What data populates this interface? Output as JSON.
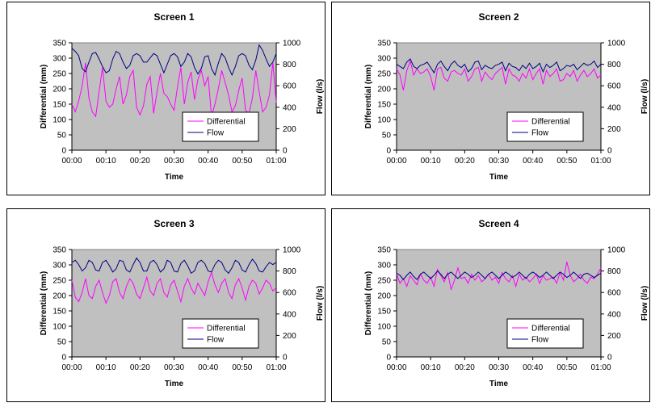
{
  "chart_data": [
    {
      "type": "line",
      "title": "Screen 1",
      "xlabel": "Time",
      "ylabel": "Differential (mm)",
      "y2label": "Flow (l/s)",
      "xticks": [
        "00:00",
        "00:10",
        "00:20",
        "00:30",
        "00:40",
        "00:50",
        "01:00"
      ],
      "ylim": [
        0,
        350
      ],
      "yticks": [
        0,
        50,
        100,
        150,
        200,
        250,
        300,
        350
      ],
      "y2lim": [
        0,
        1000
      ],
      "y2ticks": [
        0,
        200,
        400,
        600,
        800,
        1000
      ],
      "legend_placement": "bottom-right",
      "series": [
        {
          "name": "Differential",
          "axis": "left",
          "color": "#ff00ff",
          "values": [
            150,
            125,
            160,
            210,
            285,
            170,
            125,
            110,
            190,
            270,
            160,
            140,
            150,
            200,
            240,
            150,
            180,
            240,
            260,
            140,
            115,
            145,
            215,
            240,
            120,
            190,
            250,
            185,
            175,
            150,
            130,
            205,
            270,
            150,
            220,
            255,
            165,
            230,
            260,
            210,
            240,
            110,
            150,
            200,
            260,
            220,
            180,
            125,
            145,
            195,
            235,
            130,
            120,
            170,
            260,
            190,
            125,
            140,
            180,
            285,
            155
          ]
        },
        {
          "name": "Flow",
          "axis": "right",
          "color": "#000080",
          "values": [
            950,
            920,
            880,
            760,
            730,
            820,
            900,
            910,
            850,
            780,
            720,
            740,
            850,
            920,
            900,
            820,
            760,
            790,
            880,
            900,
            880,
            820,
            820,
            860,
            900,
            880,
            800,
            720,
            800,
            880,
            900,
            870,
            780,
            820,
            900,
            870,
            770,
            710,
            760,
            870,
            880,
            760,
            700,
            810,
            900,
            860,
            770,
            700,
            780,
            880,
            900,
            880,
            790,
            750,
            840,
            980,
            930,
            850,
            780,
            820,
            900
          ]
        }
      ]
    },
    {
      "type": "line",
      "title": "Screen 2",
      "xlabel": "Time",
      "ylabel": "Differential (mm)",
      "y2label": "Flow (l/s)",
      "xticks": [
        "00:00",
        "00:10",
        "00:20",
        "00:30",
        "00:40",
        "00:50",
        "01:00"
      ],
      "ylim": [
        0,
        350
      ],
      "yticks": [
        0,
        50,
        100,
        150,
        200,
        250,
        300,
        350
      ],
      "y2lim": [
        0,
        1000
      ],
      "y2ticks": [
        0,
        200,
        400,
        600,
        800,
        1000
      ],
      "legend_placement": "bottom-right",
      "series": [
        {
          "name": "Differential",
          "axis": "left",
          "color": "#ff00ff",
          "values": [
            265,
            245,
            195,
            260,
            290,
            245,
            265,
            250,
            255,
            265,
            240,
            195,
            265,
            270,
            235,
            225,
            255,
            260,
            250,
            245,
            265,
            225,
            240,
            265,
            270,
            225,
            255,
            240,
            230,
            250,
            260,
            270,
            215,
            265,
            245,
            240,
            225,
            250,
            235,
            265,
            230,
            250,
            265,
            215,
            260,
            240,
            250,
            265,
            225,
            230,
            250,
            240,
            260,
            225,
            245,
            260,
            240,
            250,
            265,
            235,
            245
          ]
        },
        {
          "name": "Flow",
          "axis": "right",
          "color": "#000080",
          "values": [
            800,
            780,
            760,
            820,
            850,
            780,
            760,
            790,
            800,
            820,
            770,
            720,
            800,
            830,
            780,
            740,
            800,
            830,
            790,
            770,
            800,
            730,
            760,
            820,
            830,
            750,
            790,
            770,
            760,
            790,
            800,
            820,
            740,
            810,
            780,
            770,
            740,
            790,
            760,
            810,
            760,
            780,
            810,
            730,
            800,
            770,
            790,
            820,
            740,
            760,
            790,
            780,
            800,
            750,
            780,
            810,
            790,
            800,
            830,
            770,
            800
          ]
        }
      ]
    },
    {
      "type": "line",
      "title": "Screen 3",
      "xlabel": "Time",
      "ylabel": "Differential (mm)",
      "y2label": "Flow (l/s)",
      "xticks": [
        "00:00",
        "00:10",
        "00:20",
        "00:30",
        "00:40",
        "00:50",
        "01:00"
      ],
      "ylim": [
        0,
        350
      ],
      "yticks": [
        0,
        50,
        100,
        150,
        200,
        250,
        300,
        350
      ],
      "y2lim": [
        0,
        1000
      ],
      "y2ticks": [
        0,
        200,
        400,
        600,
        800,
        1000
      ],
      "legend_placement": "bottom-right",
      "series": [
        {
          "name": "Differential",
          "axis": "left",
          "color": "#ff00ff",
          "values": [
            250,
            195,
            180,
            210,
            255,
            200,
            190,
            230,
            250,
            210,
            175,
            200,
            245,
            255,
            210,
            190,
            230,
            255,
            240,
            205,
            190,
            225,
            260,
            215,
            200,
            240,
            255,
            210,
            195,
            235,
            250,
            215,
            180,
            230,
            255,
            225,
            205,
            240,
            220,
            200,
            245,
            275,
            235,
            210,
            240,
            255,
            210,
            190,
            235,
            255,
            225,
            185,
            230,
            250,
            240,
            205,
            225,
            250,
            240,
            215,
            225
          ]
        },
        {
          "name": "Flow",
          "axis": "right",
          "color": "#000080",
          "values": [
            880,
            900,
            860,
            800,
            830,
            900,
            880,
            810,
            800,
            880,
            900,
            850,
            790,
            820,
            900,
            890,
            810,
            790,
            860,
            920,
            880,
            800,
            800,
            880,
            900,
            860,
            790,
            820,
            900,
            880,
            800,
            790,
            870,
            900,
            850,
            780,
            800,
            880,
            900,
            870,
            800,
            790,
            860,
            900,
            880,
            810,
            780,
            830,
            900,
            880,
            810,
            790,
            860,
            910,
            870,
            800,
            790,
            840,
            880,
            860,
            880
          ]
        }
      ]
    },
    {
      "type": "line",
      "title": "Screen 4",
      "xlabel": "Time",
      "ylabel": "Differential (mm)",
      "y2label": "Flow (l/s)",
      "xticks": [
        "00:00",
        "00:10",
        "00:20",
        "00:30",
        "00:40",
        "00:50",
        "01:00"
      ],
      "ylim": [
        0,
        350
      ],
      "yticks": [
        0,
        50,
        100,
        150,
        200,
        250,
        300,
        350
      ],
      "y2lim": [
        0,
        1000
      ],
      "y2ticks": [
        0,
        200,
        400,
        600,
        800,
        1000
      ],
      "legend_placement": "bottom-right",
      "series": [
        {
          "name": "Differential",
          "axis": "left",
          "color": "#ff00ff",
          "values": [
            270,
            240,
            255,
            230,
            265,
            250,
            235,
            270,
            250,
            240,
            260,
            230,
            285,
            265,
            245,
            275,
            220,
            250,
            290,
            255,
            260,
            240,
            270,
            250,
            265,
            245,
            255,
            270,
            250,
            260,
            240,
            275,
            255,
            245,
            265,
            230,
            270,
            250,
            260,
            245,
            255,
            270,
            240,
            265,
            250,
            255,
            260,
            240,
            275,
            250,
            310,
            265,
            245,
            255,
            270,
            250,
            240,
            260,
            255,
            270,
            290
          ]
        },
        {
          "name": "Flow",
          "axis": "right",
          "color": "#000080",
          "values": [
            780,
            760,
            720,
            760,
            790,
            750,
            720,
            770,
            790,
            760,
            730,
            760,
            800,
            770,
            730,
            770,
            790,
            760,
            730,
            760,
            790,
            770,
            740,
            760,
            790,
            760,
            730,
            770,
            790,
            760,
            730,
            760,
            790,
            770,
            740,
            760,
            790,
            760,
            730,
            770,
            790,
            770,
            740,
            760,
            790,
            760,
            730,
            760,
            790,
            770,
            740,
            760,
            790,
            760,
            730,
            770,
            780,
            760,
            740,
            760,
            780
          ]
        }
      ]
    }
  ]
}
